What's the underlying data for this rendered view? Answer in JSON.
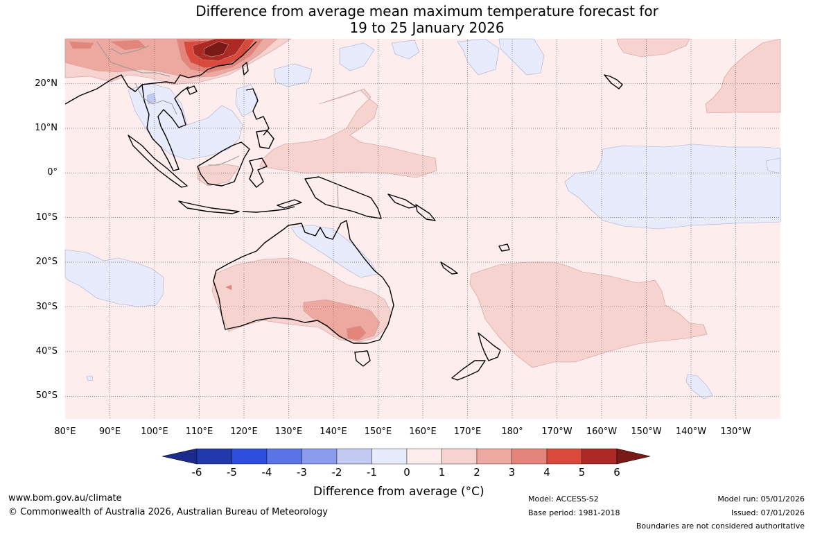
{
  "title": {
    "line1": "Difference from average mean maximum temperature forecast for",
    "line2": "19 to 25 January 2026"
  },
  "map": {
    "lat_labels": [
      "20°N",
      "10°N",
      "0°",
      "10°S",
      "20°S",
      "30°S",
      "40°S",
      "50°S"
    ],
    "lon_labels": [
      "80°E",
      "90°E",
      "100°E",
      "110°E",
      "120°E",
      "130°E",
      "140°E",
      "150°E",
      "160°E",
      "170°E",
      "180°",
      "170°W",
      "160°W",
      "150°W",
      "140°W",
      "130°W"
    ]
  },
  "colorbar": {
    "ticks": [
      "-6",
      "-5",
      "-4",
      "-3",
      "-2",
      "-1",
      "0",
      "1",
      "2",
      "3",
      "4",
      "5",
      "6"
    ],
    "colors": [
      "#1b2a8c",
      "#2239ab",
      "#2e4fdd",
      "#5b74e5",
      "#8a9ceb",
      "#c2caf2",
      "#e8ebfb",
      "#fdeded",
      "#f6d3cf",
      "#eda8a0",
      "#e4857b",
      "#d94a3c",
      "#ad2a24",
      "#7a1a16"
    ],
    "label": "Difference from average (°C)"
  },
  "footer": {
    "url": "www.bom.gov.au/climate",
    "copyright": "© Commonwealth of Australia 2026, Australian Bureau of Meteorology",
    "model": "Model: ACCESS-S2",
    "base_period": "Base period: 1981-2018",
    "model_run": "Model run: 05/01/2026",
    "issued": "Issued: 07/01/2026",
    "disclaimer": "Boundaries are not considered authoritative"
  }
}
